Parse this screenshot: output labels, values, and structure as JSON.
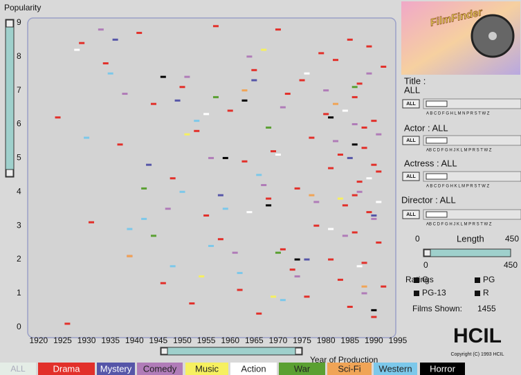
{
  "chart_data": {
    "type": "scatter",
    "ylabel": "Popularity",
    "xlabel": "Year of Production",
    "xlim": [
      1918,
      1995
    ],
    "ylim": [
      -0.25,
      9.1
    ],
    "xticks": [
      1920,
      1925,
      1930,
      1935,
      1940,
      1945,
      1950,
      1955,
      1960,
      1965,
      1970,
      1975,
      1980,
      1985,
      1990,
      1995
    ],
    "yticks": [
      0,
      1,
      2,
      3,
      4,
      5,
      6,
      7,
      8,
      9
    ],
    "all_label": "ALL",
    "series": [
      {
        "name": "Drama",
        "color": "#e2302a",
        "x": [
          1924,
          1926,
          1929,
          1931,
          1934,
          1937,
          1939,
          1941,
          1944,
          1946,
          1948,
          1950,
          1952,
          1953,
          1955,
          1957,
          1958,
          1960,
          1962,
          1963,
          1965,
          1966,
          1968,
          1969,
          1970,
          1971,
          1972,
          1973,
          1974,
          1975,
          1976,
          1977,
          1978,
          1979,
          1980,
          1981,
          1981,
          1982,
          1983,
          1983,
          1984,
          1985,
          1985,
          1986,
          1986,
          1987,
          1987,
          1988,
          1988,
          1989,
          1989,
          1990,
          1990,
          1991,
          1991,
          1992,
          1992,
          1986,
          1988,
          1990
        ],
        "y": [
          6.2,
          0.1,
          8.4,
          3.1,
          7.8,
          5.4,
          2.1,
          8.7,
          6.6,
          1.3,
          4.4,
          7.1,
          0.7,
          5.8,
          3.3,
          8.9,
          2.6,
          6.4,
          1.1,
          4.9,
          7.6,
          0.4,
          3.8,
          5.2,
          8.8,
          2.3,
          6.9,
          1.7,
          4.1,
          7.3,
          0.9,
          5.6,
          3.0,
          8.1,
          6.3,
          2.0,
          4.7,
          7.9,
          1.4,
          5.1,
          3.6,
          8.5,
          0.6,
          6.8,
          2.8,
          4.3,
          7.2,
          1.9,
          5.9,
          3.4,
          8.3,
          0.3,
          6.1,
          2.5,
          4.6,
          7.7,
          1.2,
          3.9,
          5.3,
          4.8
        ]
      },
      {
        "name": "Mystery",
        "color": "#5656a8",
        "x": [
          1936,
          1943,
          1949,
          1958,
          1965,
          1976,
          1985,
          1990
        ],
        "y": [
          8.5,
          4.8,
          6.7,
          3.9,
          7.3,
          2.0,
          5.0,
          3.3
        ]
      },
      {
        "name": "Comedy",
        "color": "#b07cb8",
        "x": [
          1933,
          1938,
          1947,
          1951,
          1956,
          1961,
          1964,
          1967,
          1971,
          1974,
          1978,
          1980,
          1982,
          1984,
          1986,
          1987,
          1988,
          1989,
          1990,
          1991
        ],
        "y": [
          8.8,
          6.9,
          3.5,
          7.4,
          5.0,
          2.2,
          8.0,
          4.2,
          6.5,
          1.5,
          3.7,
          7.0,
          5.5,
          2.7,
          6.0,
          4.0,
          1.0,
          7.5,
          3.2,
          5.7
        ]
      },
      {
        "name": "Music",
        "color": "#f6f060",
        "x": [
          1951,
          1954,
          1967,
          1969,
          1983
        ],
        "y": [
          5.7,
          1.5,
          8.2,
          0.9,
          3.8
        ]
      },
      {
        "name": "Action",
        "color": "#ffffff",
        "x": [
          1928,
          1955,
          1964,
          1970,
          1976,
          1981,
          1984,
          1987,
          1989,
          1991
        ],
        "y": [
          8.2,
          6.3,
          3.4,
          5.1,
          7.5,
          2.9,
          6.4,
          1.8,
          4.4,
          3.7
        ]
      },
      {
        "name": "War",
        "color": "#5aa032",
        "x": [
          1942,
          1944,
          1957,
          1968,
          1970,
          1986
        ],
        "y": [
          4.1,
          2.7,
          6.8,
          5.9,
          2.2,
          7.1
        ]
      },
      {
        "name": "Sci-Fi",
        "color": "#f0a456",
        "x": [
          1939,
          1963,
          1977,
          1982,
          1988
        ],
        "y": [
          2.1,
          7.0,
          3.9,
          6.6,
          1.2
        ]
      },
      {
        "name": "Western",
        "color": "#7cc8ea",
        "x": [
          1930,
          1935,
          1939,
          1942,
          1948,
          1950,
          1953,
          1956,
          1959,
          1962,
          1966,
          1971
        ],
        "y": [
          5.6,
          7.5,
          2.9,
          3.2,
          1.8,
          4.0,
          6.1,
          2.4,
          3.5,
          1.6,
          4.5,
          0.8
        ]
      },
      {
        "name": "Horror",
        "color": "#000000",
        "x": [
          1946,
          1959,
          1963,
          1968,
          1974,
          1981,
          1986,
          1990
        ],
        "y": [
          7.4,
          5.0,
          6.7,
          3.6,
          2.0,
          6.2,
          5.4,
          0.5
        ]
      }
    ]
  },
  "logo_text": "FilmFinder",
  "sidebar": {
    "title_label": "Title :",
    "title_value": "ALL",
    "all_button": "ALL",
    "title_letters": "A B C D F G H L M N P R S T W Z",
    "actor": "Actor : ALL",
    "actor_letters": "AB C D F G H J K L M P R S T W Z",
    "actress": "Actress : ALL",
    "actress_letters": "A B C D F G H K L M P R S T W Z",
    "director": "Director : ALL",
    "director_letters": "AB C D F G H J K L M P R S T W Z",
    "length_label": "Length",
    "length_min": "0",
    "length_max": "450",
    "ratings_label": "Ratings",
    "ratings": [
      "G",
      "PG",
      "PG-13",
      "R"
    ],
    "films_shown_label": "Films Shown:",
    "films_shown": "1455",
    "hcil": "HCIL",
    "copyright": "Copyright (C) 1993 HCIL"
  }
}
